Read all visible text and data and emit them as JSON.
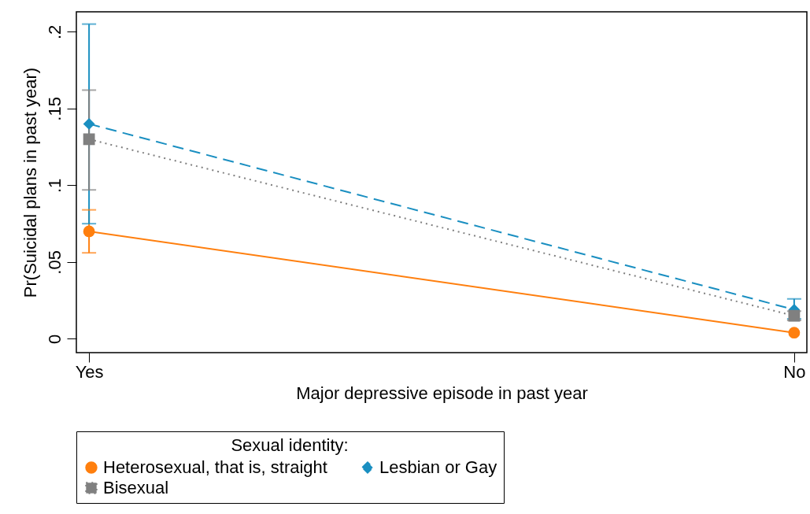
{
  "chart_data": {
    "type": "line",
    "xlabel": "Major depressive episode in past year",
    "ylabel": "Pr(Suicidal plans in past year)",
    "legend_title": "Sexual identity:",
    "categories": [
      "Yes",
      "No"
    ],
    "ylim": [
      -0.009,
      0.213
    ],
    "yticks": [
      {
        "value": 0,
        "label": "0"
      },
      {
        "value": 0.05,
        "label": ".05"
      },
      {
        "value": 0.1,
        "label": ".1"
      },
      {
        "value": 0.15,
        "label": ".15"
      },
      {
        "value": 0.2,
        "label": ".2"
      }
    ],
    "series": [
      {
        "name": "Heterosexual, that is, straight",
        "color": "#ff7f0e",
        "values": [
          0.07,
          0.004
        ],
        "errors": [
          [
            0.056,
            0.084
          ],
          null
        ],
        "marker": "circle",
        "line_style": "solid"
      },
      {
        "name": "Lesbian or Gay",
        "color": "#1a8fc1",
        "values": [
          0.14,
          0.019
        ],
        "errors": [
          [
            0.075,
            0.205
          ],
          [
            0.013,
            0.026
          ]
        ],
        "marker": "diamond",
        "line_style": "dashed"
      },
      {
        "name": "Bisexual",
        "color": "#808080",
        "values": [
          0.13,
          0.015
        ],
        "errors": [
          [
            0.097,
            0.162
          ],
          [
            0.012,
            0.018
          ]
        ],
        "marker": "square",
        "line_style": "dotted"
      }
    ],
    "grid": false,
    "legend": "bottom"
  }
}
